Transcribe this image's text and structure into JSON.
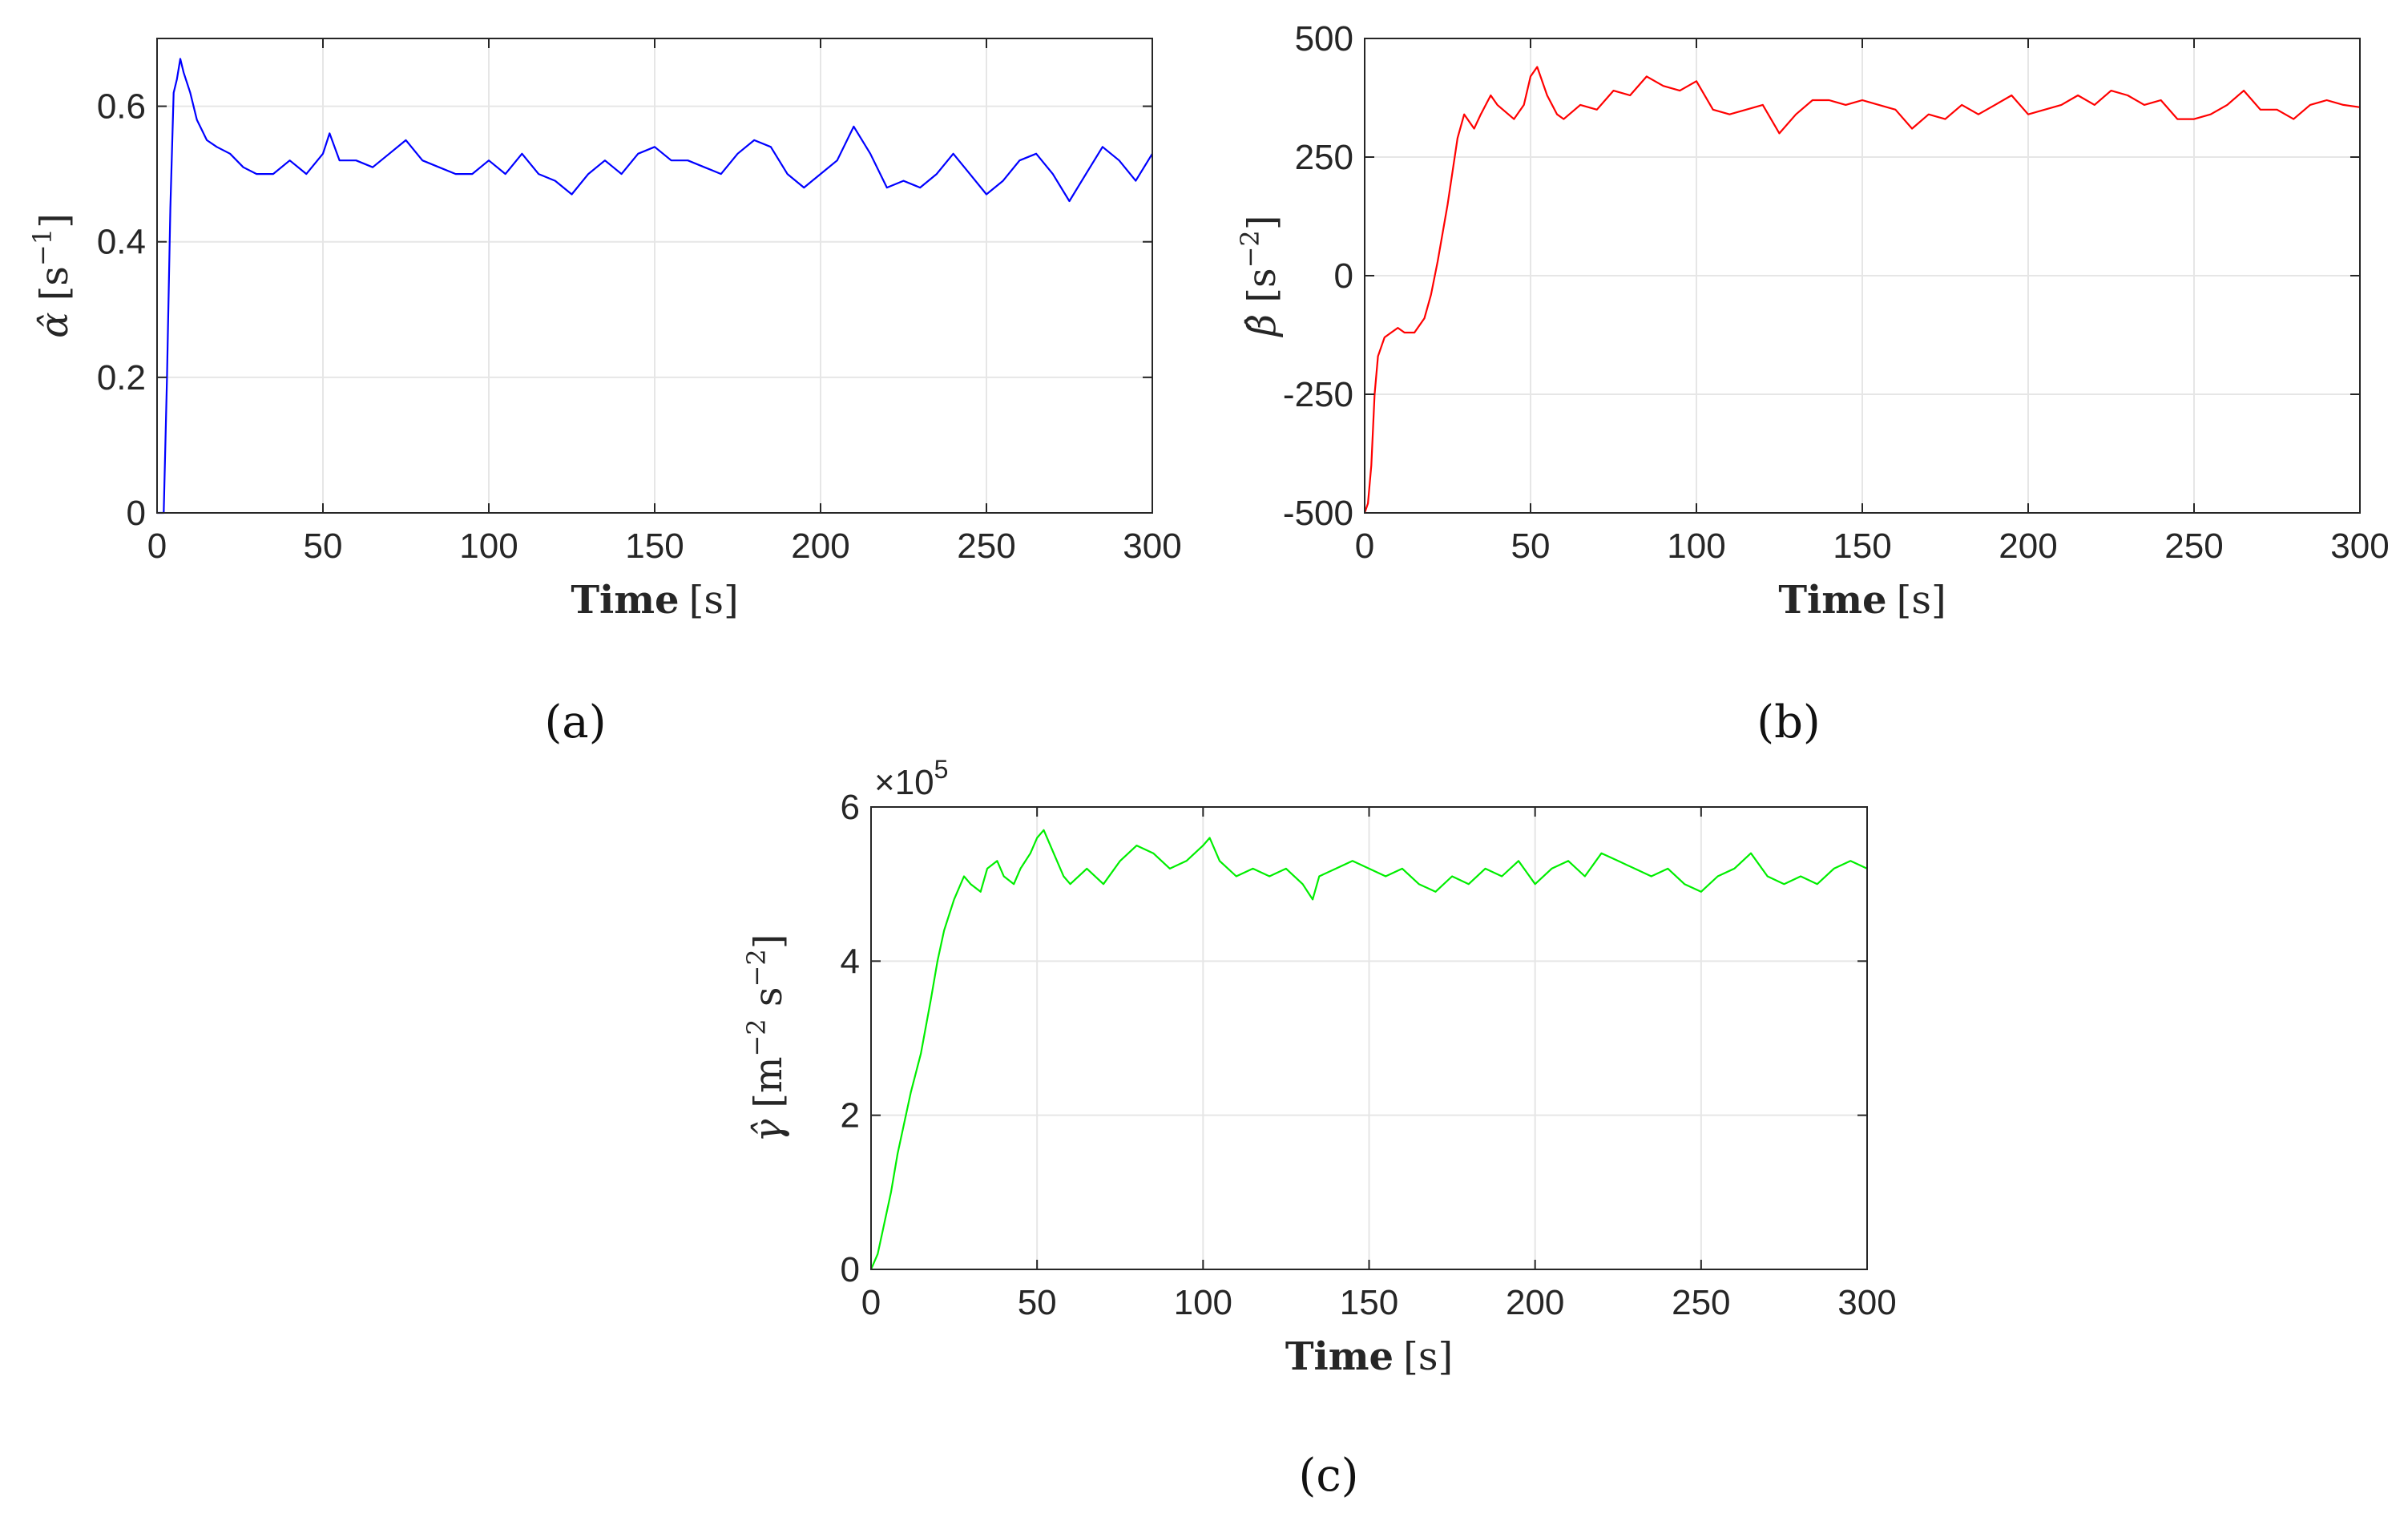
{
  "chart_data": [
    {
      "id": "a",
      "type": "line",
      "caption": "(a)",
      "title": "",
      "xlabel_bold": "Time",
      "xlabel_unit": "[s]",
      "ylabel_symbol": "α̂",
      "ylabel_unit": "[s",
      "ylabel_exp": "−1",
      "ylabel_close": "]",
      "xlim": [
        0,
        300
      ],
      "ylim": [
        0,
        0.7
      ],
      "xticks": [
        0,
        50,
        100,
        150,
        200,
        250,
        300
      ],
      "yticks": [
        0,
        0.2,
        0.4,
        0.6
      ],
      "ytick_labels": [
        "0",
        "0.2",
        "0.4",
        "0.6"
      ],
      "grid": true,
      "multiplier": "",
      "series": [
        {
          "color": "#0000ff",
          "x": [
            0,
            2,
            3,
            4,
            5,
            6,
            7,
            8,
            10,
            12,
            15,
            18,
            22,
            26,
            30,
            35,
            40,
            45,
            50,
            52,
            55,
            60,
            65,
            70,
            75,
            80,
            85,
            90,
            95,
            100,
            105,
            110,
            115,
            120,
            125,
            130,
            135,
            140,
            145,
            150,
            155,
            160,
            165,
            170,
            175,
            180,
            185,
            190,
            195,
            200,
            205,
            210,
            215,
            220,
            225,
            230,
            235,
            240,
            245,
            250,
            255,
            260,
            265,
            270,
            275,
            280,
            285,
            290,
            295,
            300
          ],
          "y": [
            0,
            0,
            0.2,
            0.45,
            0.62,
            0.64,
            0.67,
            0.65,
            0.62,
            0.58,
            0.55,
            0.54,
            0.53,
            0.51,
            0.5,
            0.5,
            0.52,
            0.5,
            0.53,
            0.56,
            0.52,
            0.52,
            0.51,
            0.53,
            0.55,
            0.52,
            0.51,
            0.5,
            0.5,
            0.52,
            0.5,
            0.53,
            0.5,
            0.49,
            0.47,
            0.5,
            0.52,
            0.5,
            0.53,
            0.54,
            0.52,
            0.52,
            0.51,
            0.5,
            0.53,
            0.55,
            0.54,
            0.5,
            0.48,
            0.5,
            0.52,
            0.57,
            0.53,
            0.48,
            0.49,
            0.48,
            0.5,
            0.53,
            0.5,
            0.47,
            0.49,
            0.52,
            0.53,
            0.5,
            0.46,
            0.5,
            0.54,
            0.52,
            0.49,
            0.53
          ]
        }
      ]
    },
    {
      "id": "b",
      "type": "line",
      "caption": "(b)",
      "title": "",
      "xlabel_bold": "Time",
      "xlabel_unit": "[s]",
      "ylabel_symbol": "β̂",
      "ylabel_unit": "[s",
      "ylabel_exp": "−2",
      "ylabel_close": "]",
      "xlim": [
        0,
        300
      ],
      "ylim": [
        -500,
        500
      ],
      "xticks": [
        0,
        50,
        100,
        150,
        200,
        250,
        300
      ],
      "yticks": [
        -500,
        -250,
        0,
        250,
        500
      ],
      "ytick_labels": [
        "-500",
        "-250",
        "0",
        "250",
        "500"
      ],
      "grid": true,
      "multiplier": "",
      "series": [
        {
          "color": "#ff0000",
          "x": [
            0,
            1,
            2,
            3,
            4,
            5,
            6,
            8,
            10,
            12,
            15,
            18,
            20,
            22,
            25,
            28,
            30,
            33,
            35,
            38,
            40,
            45,
            48,
            50,
            52,
            55,
            58,
            60,
            65,
            70,
            75,
            80,
            85,
            90,
            95,
            100,
            105,
            110,
            115,
            120,
            125,
            130,
            135,
            140,
            145,
            150,
            155,
            160,
            165,
            170,
            175,
            180,
            185,
            190,
            195,
            200,
            205,
            210,
            215,
            220,
            225,
            230,
            235,
            240,
            245,
            250,
            255,
            260,
            265,
            270,
            275,
            280,
            285,
            290,
            295,
            300
          ],
          "y": [
            -500,
            -480,
            -400,
            -250,
            -170,
            -150,
            -130,
            -120,
            -110,
            -120,
            -120,
            -90,
            -40,
            30,
            150,
            290,
            340,
            310,
            340,
            380,
            360,
            330,
            360,
            420,
            440,
            380,
            340,
            330,
            360,
            350,
            390,
            380,
            420,
            400,
            390,
            410,
            350,
            340,
            350,
            360,
            300,
            340,
            370,
            370,
            360,
            370,
            360,
            350,
            310,
            340,
            330,
            360,
            340,
            360,
            380,
            340,
            350,
            360,
            380,
            360,
            390,
            380,
            360,
            370,
            330,
            330,
            340,
            360,
            390,
            350,
            350,
            330,
            360,
            370,
            360,
            355
          ]
        }
      ]
    },
    {
      "id": "c",
      "type": "line",
      "caption": "(c)",
      "title": "",
      "xlabel_bold": "Time",
      "xlabel_unit": "[s]",
      "ylabel_symbol": "γ̂",
      "ylabel_unit": "[m",
      "ylabel_exp": "−2",
      "ylabel_unit2": " s",
      "ylabel_exp2": "−2",
      "ylabel_close": "]",
      "xlim": [
        0,
        300
      ],
      "ylim": [
        0,
        600000
      ],
      "xticks": [
        0,
        50,
        100,
        150,
        200,
        250,
        300
      ],
      "yticks": [
        0,
        200000,
        400000,
        600000
      ],
      "ytick_labels": [
        "0",
        "2",
        "4",
        "6"
      ],
      "grid": true,
      "multiplier": "×10",
      "multiplier_exp": "5",
      "series": [
        {
          "color": "#00ee00",
          "x": [
            0,
            2,
            4,
            6,
            8,
            10,
            12,
            15,
            18,
            20,
            22,
            25,
            28,
            30,
            33,
            35,
            38,
            40,
            43,
            45,
            48,
            50,
            52,
            55,
            58,
            60,
            65,
            70,
            75,
            80,
            85,
            90,
            95,
            100,
            102,
            105,
            110,
            115,
            120,
            125,
            130,
            133,
            135,
            140,
            145,
            150,
            155,
            160,
            165,
            170,
            175,
            180,
            185,
            190,
            195,
            200,
            205,
            210,
            215,
            220,
            225,
            230,
            235,
            240,
            245,
            250,
            255,
            260,
            265,
            270,
            275,
            280,
            285,
            290,
            295,
            300
          ],
          "y": [
            0,
            20000,
            60000,
            100000,
            150000,
            190000,
            230000,
            280000,
            350000,
            400000,
            440000,
            480000,
            510000,
            500000,
            490000,
            520000,
            530000,
            510000,
            500000,
            520000,
            540000,
            560000,
            570000,
            540000,
            510000,
            500000,
            520000,
            500000,
            530000,
            550000,
            540000,
            520000,
            530000,
            550000,
            560000,
            530000,
            510000,
            520000,
            510000,
            520000,
            500000,
            480000,
            510000,
            520000,
            530000,
            520000,
            510000,
            520000,
            500000,
            490000,
            510000,
            500000,
            520000,
            510000,
            530000,
            500000,
            520000,
            530000,
            510000,
            540000,
            530000,
            520000,
            510000,
            520000,
            500000,
            490000,
            510000,
            520000,
            540000,
            510000,
            500000,
            510000,
            500000,
            520000,
            530000,
            520000
          ]
        }
      ]
    }
  ]
}
